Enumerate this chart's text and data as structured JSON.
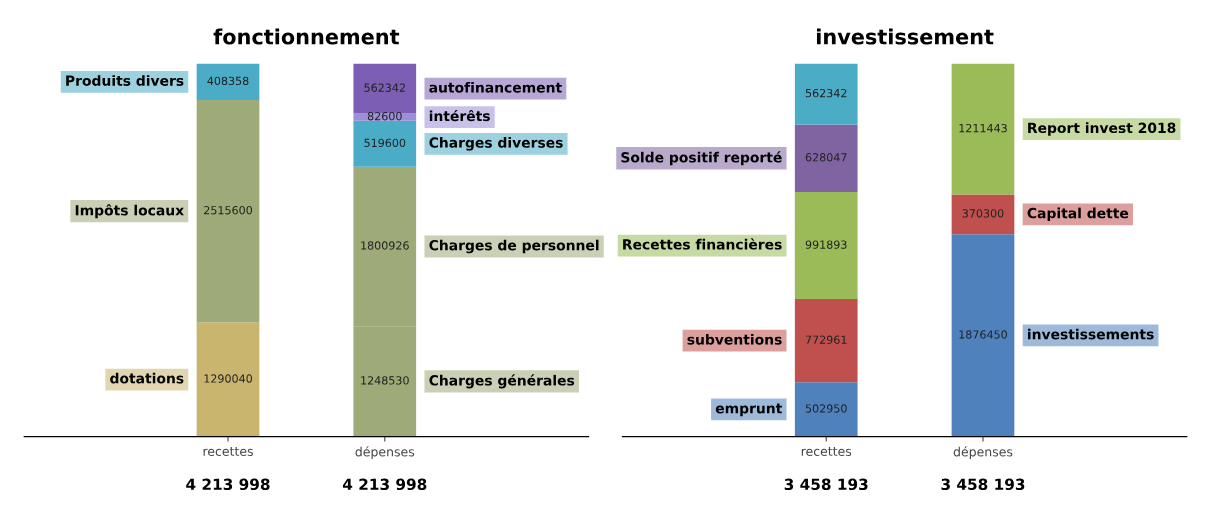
{
  "chart_data": [
    {
      "type": "bar",
      "title": "fonctionnement",
      "stacked": true,
      "data_labels": true,
      "tick_labels": "x",
      "legend": false,
      "categories": [
        "recettes",
        "dépenses"
      ],
      "totals": [
        "4 213 998",
        "4 213 998"
      ],
      "series": [
        {
          "name": "dotations",
          "color": "#c9b56e",
          "values": [
            1290040,
            null
          ]
        },
        {
          "name": "Impôts locaux",
          "color": "#9eaa78",
          "values": [
            2515600,
            null
          ]
        },
        {
          "name": "Produits divers",
          "color": "#4aacc6",
          "values": [
            408358,
            null
          ]
        },
        {
          "name": "Charges générales",
          "color": "#9eaa78",
          "values": [
            null,
            1248530
          ]
        },
        {
          "name": "Charges de personnel",
          "color": "#9eaa78",
          "values": [
            null,
            1800926
          ]
        },
        {
          "name": "Charges diverses",
          "color": "#4aacc6",
          "values": [
            null,
            519600
          ]
        },
        {
          "name": "intérêts",
          "color": "#9b8fd8",
          "values": [
            null,
            82600
          ]
        },
        {
          "name": "autofinancement",
          "color": "#7c5fb5",
          "values": [
            null,
            562342
          ]
        }
      ]
    },
    {
      "type": "bar",
      "title": "investissement",
      "stacked": true,
      "data_labels": true,
      "tick_labels": "x",
      "legend": false,
      "categories": [
        "recettes",
        "dépenses"
      ],
      "totals": [
        "3 458 193",
        "3 458 193"
      ],
      "series": [
        {
          "name": "emprunt",
          "color": "#4f81bd",
          "values": [
            502950,
            null
          ]
        },
        {
          "name": "subventions",
          "color": "#c0504d",
          "values": [
            772961,
            null
          ]
        },
        {
          "name": "Recettes financières",
          "color": "#9bbb59",
          "values": [
            991893,
            null
          ]
        },
        {
          "name": "Solde positif reporté",
          "color": "#8064a2",
          "values": [
            628047,
            null
          ]
        },
        {
          "color": "#4bacc6",
          "values": [
            562342,
            null
          ]
        },
        {
          "name": "investissements",
          "color": "#4f81bd",
          "values": [
            null,
            1876450
          ]
        },
        {
          "name": "Capital dette",
          "color": "#c0504d",
          "values": [
            null,
            370300
          ]
        },
        {
          "name": "Report invest 2018",
          "color": "#9bbb59",
          "values": [
            null,
            1211443
          ]
        }
      ]
    }
  ]
}
